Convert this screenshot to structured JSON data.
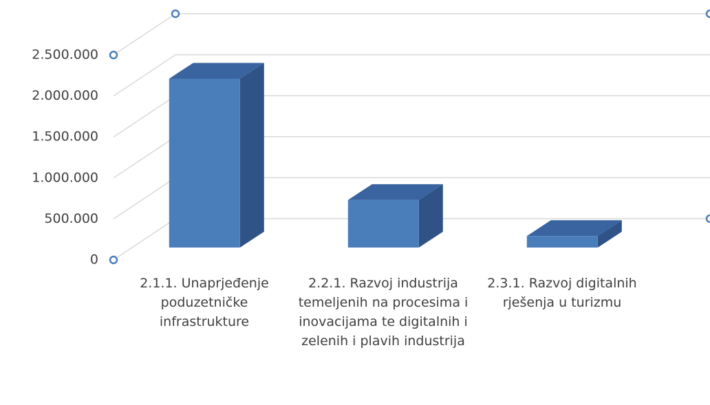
{
  "chart_data": {
    "type": "bar3d",
    "categories": [
      "2.1.1. Unaprjeđenje poduzetničke infrastrukture",
      "2.2.1. Razvoj industrija temeljenih na procesima i inovacijama te digitalnih i zelenih i plavih industrija",
      "2.3.1. Razvoj digitalnih rješenja u turizmu"
    ],
    "values": [
      2060000,
      580000,
      140000
    ],
    "color": "#4a7ebb",
    "ylim": [
      0,
      2500000
    ],
    "yticks": [
      0,
      {
        "value": 500000,
        "label": "500.000"
      },
      {
        "value": 1000000,
        "label": "1.000.000"
      },
      {
        "value": 1500000,
        "label": "1.500.000"
      },
      {
        "value": 2000000,
        "label": "2.000.000"
      },
      {
        "value": 2500000,
        "label": "2.500.000"
      }
    ],
    "grid": true
  }
}
